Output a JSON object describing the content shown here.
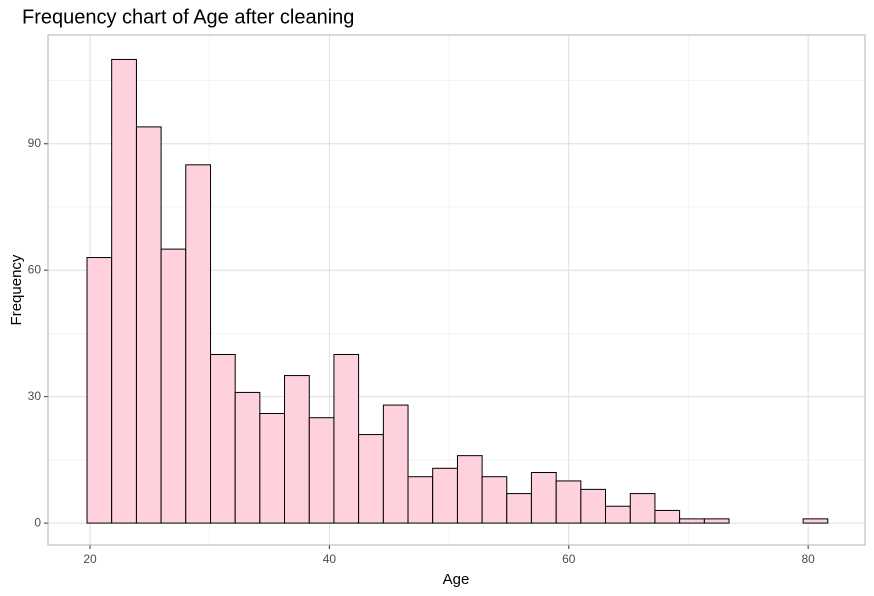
{
  "chart_data": {
    "type": "histogram",
    "title": "Frequency chart of Age after cleaning",
    "x_label": "Age",
    "y_label": "Frequency",
    "bins": [
      19.75,
      21.81,
      23.88,
      25.94,
      28.0,
      30.07,
      32.13,
      34.19,
      36.25,
      38.32,
      40.38,
      42.44,
      44.51,
      46.57,
      48.63,
      50.7,
      52.76,
      54.82,
      56.88,
      58.95,
      61.01,
      63.07,
      65.14,
      67.2,
      69.26,
      71.33,
      73.39,
      75.45,
      77.51,
      79.58,
      81.64
    ],
    "values": [
      63,
      110,
      94,
      65,
      85,
      40,
      31,
      26,
      35,
      25,
      40,
      21,
      28,
      11,
      13,
      16,
      11,
      7,
      12,
      10,
      8,
      4,
      7,
      3,
      1,
      1,
      0,
      0,
      0,
      1
    ],
    "color": "#ffd1dc",
    "edge_color": "#000000",
    "xlim": [
      16.49,
      84.75
    ],
    "xticks": [
      20,
      40,
      60,
      80
    ],
    "ylim": [
      -5.2,
      115.8
    ],
    "yticks": [
      0,
      30,
      60,
      90
    ],
    "grid": true
  }
}
